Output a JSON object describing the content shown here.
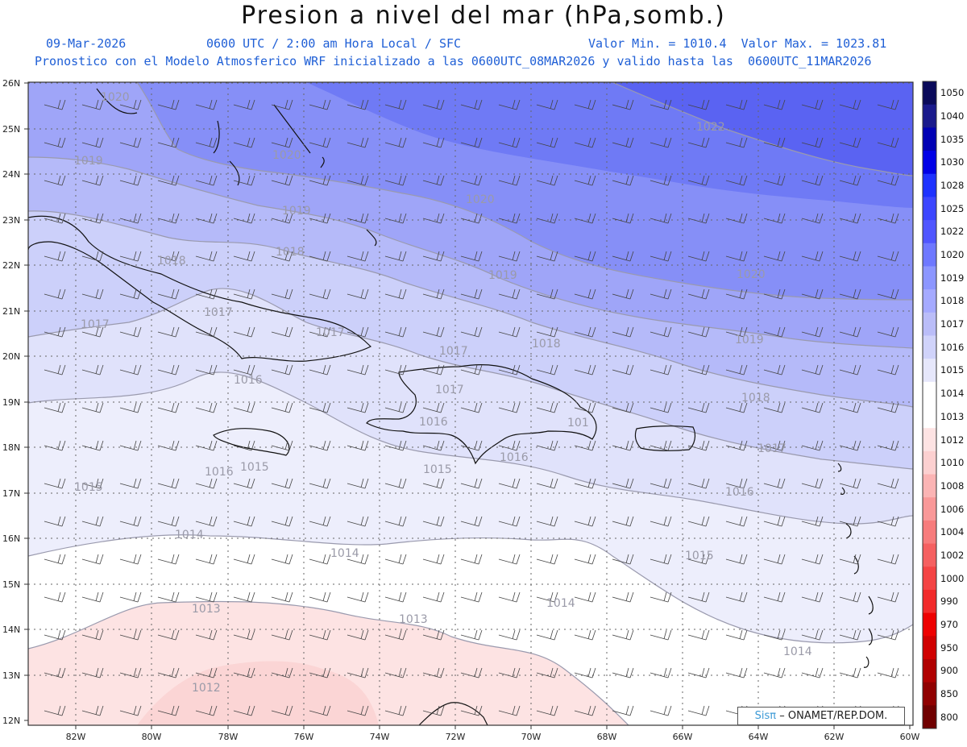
{
  "header": {
    "title": "Presion a nivel del mar (hPa,somb.)",
    "date": "09-Mar-2026",
    "time": "0600 UTC / 2:00 am Hora Local / SFC",
    "minmax": "Valor Min. = 1010.4  Valor Max. = 1023.81",
    "forecast": "Pronostico con el Modelo Atmosferico WRF inicializado a las 0600UTC_08MAR2026 y valido hasta las  0600UTC_11MAR2026"
  },
  "axes": {
    "lat_labels": [
      "26N",
      "25N",
      "24N",
      "23N",
      "22N",
      "21N",
      "20N",
      "19N",
      "18N",
      "17N",
      "16N",
      "15N",
      "14N",
      "13N",
      "12N"
    ],
    "lon_labels": [
      "82W",
      "80W",
      "78W",
      "76W",
      "74W",
      "72W",
      "70W",
      "68W",
      "66W",
      "64W",
      "62W",
      "60W"
    ]
  },
  "colorbar": {
    "labels": [
      "1050",
      "1040",
      "1035",
      "1030",
      "1028",
      "1025",
      "1022",
      "1020",
      "1019",
      "1018",
      "1017",
      "1016",
      "1015",
      "1014",
      "1013",
      "1012",
      "1010",
      "1008",
      "1006",
      "1004",
      "1002",
      "1000",
      "990",
      "970",
      "950",
      "900",
      "850",
      "800"
    ],
    "colors": [
      "#0a0a5a",
      "#1a1a8c",
      "#0000b4",
      "#0000e6",
      "#1e32ff",
      "#3c46ff",
      "#5056ff",
      "#6e78ff",
      "#8c96ff",
      "#a5aaff",
      "#babdf8",
      "#d0d3fa",
      "#e6e7fb",
      "#ffffff",
      "#ffffff",
      "#fde3e3",
      "#fcd0d0",
      "#fbb4b4",
      "#f99898",
      "#f77c7c",
      "#f56060",
      "#f44444",
      "#f22a2a",
      "#ee0000",
      "#d00000",
      "#b00000",
      "#900000",
      "#700000"
    ]
  },
  "contour_labels": [
    {
      "text": "1020"
    },
    {
      "text": "1019"
    },
    {
      "text": "1020"
    },
    {
      "text": "1020"
    },
    {
      "text": "1022"
    },
    {
      "text": "1019"
    },
    {
      "text": "1018"
    },
    {
      "text": "1018"
    },
    {
      "text": "1019"
    },
    {
      "text": "1020"
    },
    {
      "text": "1017"
    },
    {
      "text": "1017"
    },
    {
      "text": "1017"
    },
    {
      "text": "1018"
    },
    {
      "text": "1019"
    },
    {
      "text": "1016"
    },
    {
      "text": "1017"
    },
    {
      "text": "1017"
    },
    {
      "text": "1016"
    },
    {
      "text": "1018"
    },
    {
      "text": "1016"
    },
    {
      "text": "1015"
    },
    {
      "text": "1015"
    },
    {
      "text": "1016"
    },
    {
      "text": "1017"
    },
    {
      "text": "1015"
    },
    {
      "text": "1016"
    },
    {
      "text": "1014"
    },
    {
      "text": "1014"
    },
    {
      "text": "1015"
    },
    {
      "text": "1013"
    },
    {
      "text": "1013"
    },
    {
      "text": "1014"
    },
    {
      "text": "1012"
    },
    {
      "text": "1014"
    },
    {
      "text": "101"
    }
  ],
  "brand": {
    "sis": "Sisπ",
    "org": "– ONAMET/REP.DOM."
  },
  "colors": {
    "header_blue": "#1f5fd6",
    "border": "#333333",
    "grid": "#555555",
    "contour": "#8a8a9a"
  }
}
